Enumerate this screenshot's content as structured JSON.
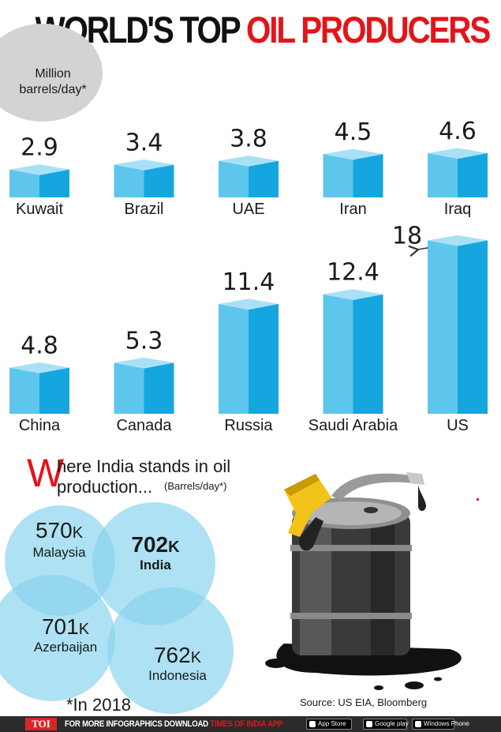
{
  "title": {
    "part1": "WORLD'S TOP ",
    "part2": "OIL PRODUCERS"
  },
  "unit": {
    "line1": "Million",
    "line2": "barrels/day*"
  },
  "chart_data": {
    "type": "bar",
    "title": "WORLD'S TOP OIL PRODUCERS",
    "ylabel": "Million barrels/day*",
    "categories": [
      "Kuwait",
      "Brazil",
      "UAE",
      "Iran",
      "Iraq",
      "China",
      "Canada",
      "Russia",
      "Saudi Arabia",
      "US"
    ],
    "values": [
      2.9,
      3.4,
      3.8,
      4.5,
      4.6,
      4.8,
      5.3,
      11.4,
      12.4,
      18
    ],
    "value_labels": [
      "2.9",
      "3.4",
      "3.8",
      "4.5",
      "4.6",
      "4.8",
      "5.3",
      "11.4",
      "12.4",
      "18"
    ],
    "rows": 2,
    "colors": {
      "front": "#5ec6ec",
      "side": "#15a6df",
      "top": "#a8e1f7"
    }
  },
  "india": {
    "head_letter": "W",
    "head_rest": "here India stands in oil",
    "head_line2": "production...",
    "unit": "(Barrels/day*)",
    "countries": [
      {
        "value": "570",
        "suffix": "K",
        "name": "Malaysia",
        "bold": false
      },
      {
        "value": "702",
        "suffix": "K",
        "name": "India",
        "bold": true
      },
      {
        "value": "701",
        "suffix": "K",
        "name": "Azerbaijan",
        "bold": false
      },
      {
        "value": "762",
        "suffix": "K",
        "name": "Indonesia",
        "bold": false
      }
    ]
  },
  "footnote": "*In 2018",
  "source": "Source: US EIA, Bloomberg",
  "footer": {
    "logo": "TOI",
    "text1": "FOR MORE  INFOGRAPHICS DOWNLOAD ",
    "text2": "TIMES OF INDIA  APP",
    "stores": [
      "App Store",
      "Google play",
      "Windows Phone"
    ]
  }
}
